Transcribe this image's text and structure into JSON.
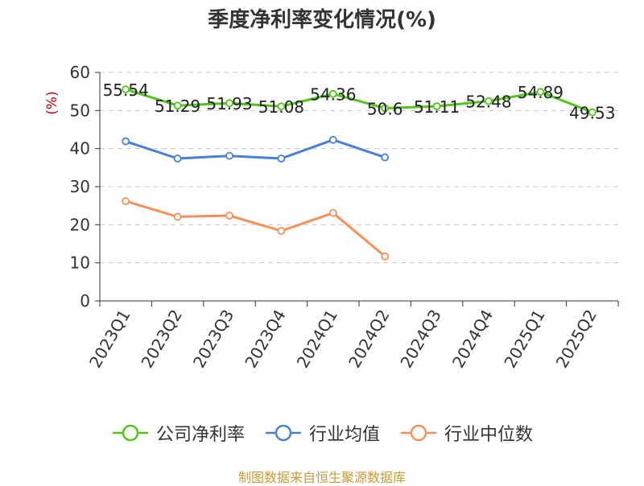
{
  "chart_data": {
    "type": "line",
    "title": "季度净利率变化情况(%)",
    "ylabel": "(%)",
    "xlabel": "",
    "ylim": [
      0,
      60
    ],
    "yticks": [
      0,
      10,
      20,
      30,
      40,
      50,
      60
    ],
    "grid": true,
    "legend_position": "bottom",
    "categories": [
      "2023Q1",
      "2023Q2",
      "2023Q3",
      "2023Q4",
      "2024Q1",
      "2024Q2",
      "2024Q3",
      "2024Q4",
      "2025Q1",
      "2025Q2"
    ],
    "series": [
      {
        "name": "公司净利率",
        "color": "#52c41a",
        "show_labels": true,
        "values": [
          55.54,
          51.29,
          51.93,
          51.08,
          54.36,
          50.6,
          51.11,
          52.48,
          54.89,
          49.53
        ]
      },
      {
        "name": "行业均值",
        "color": "#4a7fd6",
        "show_labels": false,
        "values": [
          41.9,
          37.4,
          38.1,
          37.4,
          42.3,
          37.7,
          null,
          null,
          null,
          null
        ]
      },
      {
        "name": "行业中位数",
        "color": "#f5905a",
        "show_labels": false,
        "values": [
          26.2,
          22.1,
          22.4,
          18.4,
          23.1,
          11.7,
          null,
          null,
          null,
          null
        ]
      }
    ]
  },
  "footer": {
    "source": "制图数据来自恒生聚源数据库"
  }
}
